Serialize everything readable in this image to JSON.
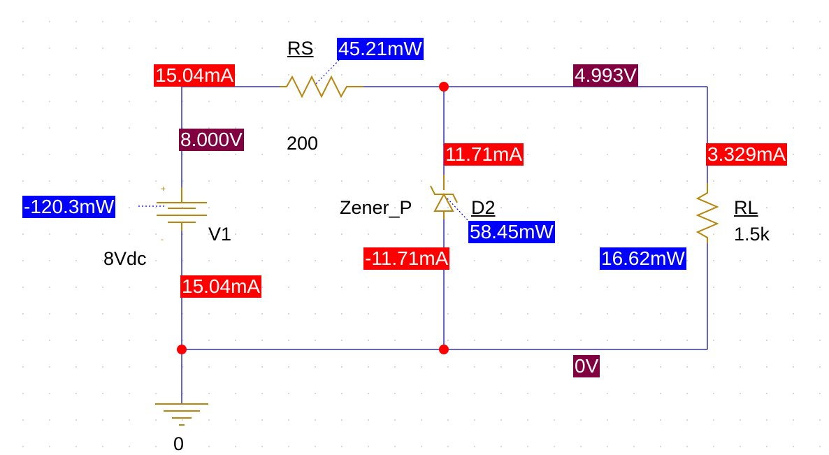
{
  "components": {
    "rs": {
      "ref": "RS",
      "value": "200",
      "power": "45.21mW",
      "current": "15.04mA"
    },
    "v1": {
      "ref": "V1",
      "value": "8Vdc",
      "plus": "+",
      "minus": "-",
      "power": "-120.3mW",
      "voltage": "8.000V",
      "current": "15.04mA"
    },
    "d2": {
      "ref": "D2",
      "part": "Zener_P",
      "power": "58.45mW",
      "current_top": "11.71mA",
      "current_bottom": "-11.71mA"
    },
    "rl": {
      "ref": "RL",
      "value": "1.5k",
      "power": "16.62mW",
      "current": "3.329mA"
    },
    "ground": {
      "label": "0"
    }
  },
  "nodes": {
    "output_voltage": "4.993V",
    "ground_voltage": "0V"
  },
  "colors": {
    "wire": "#3030c0",
    "component": "#b8860b",
    "junction": "#ff0000",
    "current_label_bg": "#ff0000",
    "power_label_bg": "#0000ff",
    "voltage_label_bg": "#800040"
  }
}
